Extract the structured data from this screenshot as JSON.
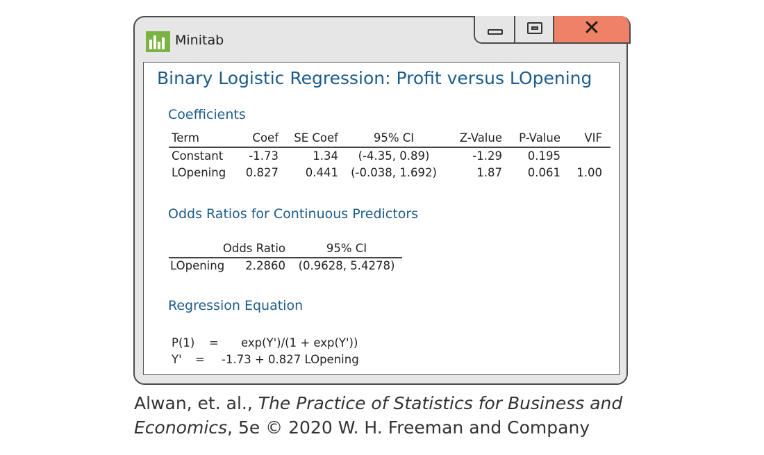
{
  "window": {
    "app_name": "Minitab",
    "icon": "minitab-logo-icon",
    "controls": {
      "minimize": "minimize-icon",
      "maximize": "maximize-icon",
      "close": "close-icon",
      "close_glyph": "✕"
    },
    "colors": {
      "accent_green": "#7bb342",
      "close_red": "#ef8266",
      "heading_blue": "#1d5b8a"
    }
  },
  "report": {
    "title": "Binary Logistic Regression: Profit versus LOpening",
    "coefficients": {
      "heading": "Coefficients",
      "columns": [
        "Term",
        "Coef",
        "SE Coef",
        "95% CI",
        "Z-Value",
        "P-Value",
        "VIF"
      ],
      "rows": [
        [
          "Constant",
          "-1.73",
          "1.34",
          "(-4.35, 0.89)",
          "-1.29",
          "0.195",
          ""
        ],
        [
          "LOpening",
          "0.827",
          "0.441",
          "(-0.038, 1.692)",
          "1.87",
          "0.061",
          "1.00"
        ]
      ]
    },
    "odds_ratios": {
      "heading": "Odds Ratios for Continuous Predictors",
      "columns": [
        "",
        "Odds Ratio",
        "95% CI"
      ],
      "rows": [
        [
          "LOpening",
          "2.2860",
          "(0.9628, 5.4278)"
        ]
      ]
    },
    "equation": {
      "heading": "Regression Equation",
      "lines": [
        {
          "lhs": "P(1)",
          "eq": "=",
          "rhs": "exp(Y')/(1 + exp(Y'))"
        },
        {
          "lhs": "Y'",
          "eq": "=",
          "rhs": "-1.73 + 0.827 LOpening"
        }
      ]
    }
  },
  "caption": {
    "authors": "Alwan, et. al., ",
    "book_title_1": "The Practice of Statistics for Business and",
    "book_title_2": "Economics",
    "edition_publisher": ", 5e © 2020 W. H. Freeman and Company"
  }
}
